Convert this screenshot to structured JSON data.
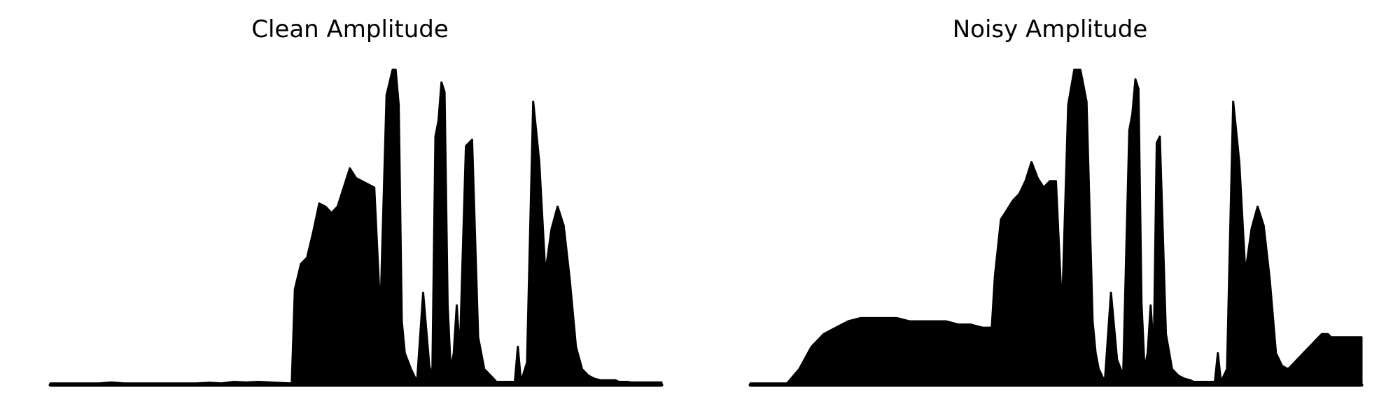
{
  "chart_data": [
    {
      "type": "area",
      "title": "Clean Amplitude",
      "axes_visible": false,
      "grid": false,
      "color": "#000000",
      "x": [
        0.0,
        0.02,
        0.04,
        0.06,
        0.08,
        0.1,
        0.12,
        0.14,
        0.16,
        0.18,
        0.2,
        0.22,
        0.24,
        0.26,
        0.28,
        0.3,
        0.32,
        0.34,
        0.36,
        0.38,
        0.395,
        0.4,
        0.41,
        0.42,
        0.43,
        0.44,
        0.45,
        0.46,
        0.47,
        0.48,
        0.49,
        0.5,
        0.51,
        0.52,
        0.53,
        0.54,
        0.55,
        0.56,
        0.565,
        0.57,
        0.575,
        0.58,
        0.59,
        0.6,
        0.61,
        0.62,
        0.625,
        0.63,
        0.635,
        0.64,
        0.645,
        0.65,
        0.655,
        0.66,
        0.665,
        0.67,
        0.68,
        0.69,
        0.7,
        0.71,
        0.72,
        0.725,
        0.73,
        0.74,
        0.75,
        0.76,
        0.765,
        0.77,
        0.78,
        0.79,
        0.8,
        0.81,
        0.82,
        0.83,
        0.84,
        0.85,
        0.86,
        0.87,
        0.88,
        0.89,
        0.9,
        0.91,
        0.915,
        0.92,
        0.925,
        0.93,
        0.935,
        0.94,
        0.945,
        0.95,
        0.955,
        0.96,
        0.97,
        0.98,
        0.99,
        1.0
      ],
      "y": [
        0.005,
        0.005,
        0.005,
        0.005,
        0.005,
        0.008,
        0.005,
        0.005,
        0.005,
        0.005,
        0.005,
        0.005,
        0.005,
        0.007,
        0.005,
        0.01,
        0.008,
        0.01,
        0.008,
        0.006,
        0.005,
        0.3,
        0.38,
        0.4,
        0.48,
        0.57,
        0.56,
        0.54,
        0.56,
        0.62,
        0.68,
        0.65,
        0.64,
        0.63,
        0.62,
        0.22,
        0.91,
        0.99,
        0.99,
        0.88,
        0.2,
        0.1,
        0.05,
        0.01,
        0.29,
        0.06,
        0.03,
        0.78,
        0.83,
        0.95,
        0.92,
        0.25,
        0.05,
        0.1,
        0.25,
        0.1,
        0.75,
        0.77,
        0.15,
        0.05,
        0.03,
        0.02,
        0.01,
        0.01,
        0.01,
        0.01,
        0.12,
        0.01,
        0.07,
        0.89,
        0.7,
        0.35,
        0.49,
        0.56,
        0.5,
        0.33,
        0.12,
        0.05,
        0.03,
        0.02,
        0.015,
        0.015,
        0.015,
        0.015,
        0.015,
        0.01,
        0.01,
        0.01,
        0.01,
        0.008,
        0.008,
        0.008,
        0.008,
        0.008,
        0.008,
        0.008
      ]
    },
    {
      "type": "area",
      "title": "Noisy Amplitude",
      "axes_visible": false,
      "grid": false,
      "color": "#000000",
      "x": [
        0.0,
        0.02,
        0.04,
        0.06,
        0.08,
        0.1,
        0.12,
        0.14,
        0.16,
        0.18,
        0.2,
        0.22,
        0.24,
        0.26,
        0.28,
        0.3,
        0.32,
        0.34,
        0.36,
        0.38,
        0.395,
        0.4,
        0.41,
        0.42,
        0.43,
        0.44,
        0.45,
        0.46,
        0.47,
        0.48,
        0.49,
        0.5,
        0.51,
        0.52,
        0.53,
        0.54,
        0.55,
        0.56,
        0.565,
        0.57,
        0.575,
        0.58,
        0.59,
        0.6,
        0.61,
        0.62,
        0.625,
        0.63,
        0.635,
        0.64,
        0.645,
        0.65,
        0.655,
        0.66,
        0.665,
        0.67,
        0.68,
        0.69,
        0.7,
        0.71,
        0.72,
        0.725,
        0.73,
        0.74,
        0.75,
        0.76,
        0.765,
        0.77,
        0.78,
        0.79,
        0.8,
        0.81,
        0.82,
        0.83,
        0.84,
        0.85,
        0.86,
        0.87,
        0.88,
        0.89,
        0.9,
        0.91,
        0.915,
        0.92,
        0.925,
        0.93,
        0.935,
        0.94,
        0.945,
        0.95,
        0.955,
        0.96,
        0.97,
        0.98,
        0.99,
        1.0
      ],
      "y": [
        0.005,
        0.005,
        0.005,
        0.005,
        0.05,
        0.12,
        0.16,
        0.18,
        0.2,
        0.21,
        0.21,
        0.21,
        0.21,
        0.2,
        0.2,
        0.2,
        0.2,
        0.19,
        0.19,
        0.18,
        0.18,
        0.34,
        0.52,
        0.55,
        0.58,
        0.6,
        0.64,
        0.7,
        0.65,
        0.62,
        0.64,
        0.64,
        0.23,
        0.88,
        0.99,
        0.99,
        0.89,
        0.2,
        0.1,
        0.05,
        0.03,
        0.01,
        0.29,
        0.08,
        0.03,
        0.8,
        0.85,
        0.96,
        0.93,
        0.26,
        0.05,
        0.1,
        0.25,
        0.1,
        0.76,
        0.78,
        0.16,
        0.05,
        0.03,
        0.02,
        0.015,
        0.01,
        0.01,
        0.01,
        0.01,
        0.01,
        0.1,
        0.01,
        0.05,
        0.89,
        0.7,
        0.35,
        0.49,
        0.56,
        0.5,
        0.33,
        0.1,
        0.06,
        0.05,
        0.07,
        0.09,
        0.11,
        0.12,
        0.13,
        0.14,
        0.15,
        0.16,
        0.16,
        0.16,
        0.15,
        0.15,
        0.15,
        0.15,
        0.15,
        0.15,
        0.15
      ]
    }
  ]
}
